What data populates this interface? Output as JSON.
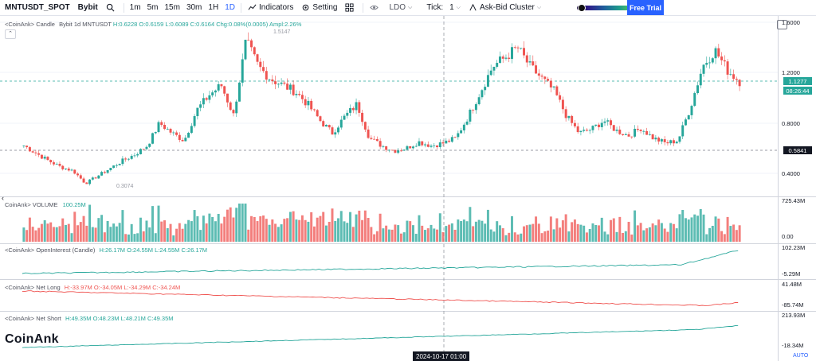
{
  "toolbar": {
    "symbol": "MNTUSDT_SPOT",
    "exchange": "Bybit",
    "intervals": [
      "1m",
      "5m",
      "15m",
      "30m",
      "1H",
      "1D"
    ],
    "active_interval": "1D",
    "indicators_label": "Indicators",
    "setting_label": "Setting",
    "ldo_label": "LDO",
    "tick_label": "Tick:",
    "tick_value": "1",
    "askbid_label": "Ask-Bid Cluster",
    "free_trial_label": "Free Trial",
    "gradient_knob_value": 0.05,
    "gradient_knob2_value": 0.97
  },
  "main_pane": {
    "legend_name": "<CoinAnk> Candle",
    "legend_symbol": "Bybit 1d MNTUSDT",
    "legend_h": "H:0.6228",
    "legend_o": "O:0.6159",
    "legend_l": "L:0.6089",
    "legend_c": "C:0.6164",
    "legend_chg": "Chg:0.08%(0.0005)",
    "legend_ampl": "Ampl:2.26%",
    "high_marker": "1.5147",
    "low_marker": "0.3074",
    "axis_ticks": [
      "1.6000",
      "1.2000",
      "0.8000",
      "0.4000"
    ],
    "last_price": "1.1277",
    "countdown": "08:26:44",
    "hline_price": "0.5841"
  },
  "volume_pane": {
    "legend_name": "CoinAnk> VOLUME",
    "legend_value": "100.25M",
    "axis_top": "725.43M",
    "axis_bottom": "0.00"
  },
  "oi_pane": {
    "legend_name": "<CoinAnk> OpenInterest (Candle)",
    "legend_h": "H:26.17M",
    "legend_o": "O:24.55M",
    "legend_l": "L:24.55M",
    "legend_c": "C:26.17M",
    "axis_top": "102.23M",
    "axis_bottom": "-5.29M"
  },
  "netlong_pane": {
    "legend_name": "<CoinAnk> Net Long",
    "legend_h": "H:-33.97M",
    "legend_o": "O:-34.05M",
    "legend_l": "L:-34.29M",
    "legend_c": "C:-34.24M",
    "axis_top": "41.48M",
    "axis_bottom": "-85.74M"
  },
  "netshort_pane": {
    "legend_name": "<CoinAnk> Net Short",
    "legend_h": "H:49.35M",
    "legend_o": "O:48.23M",
    "legend_l": "L:48.21M",
    "legend_c": "C:49.35M",
    "axis_top": "213.93M",
    "axis_bottom": "-18.34M"
  },
  "brand": "CoinAnk",
  "crosshair_time": "2024-10-17 01:00",
  "auto_label": "AUTO",
  "colors": {
    "up": "#26a69a",
    "down": "#ef5350",
    "accent": "#2962ff",
    "netlong": "#ef5350",
    "netshort": "#26a69a",
    "oi": "#26a69a"
  },
  "chart_data": {
    "type": "candlestick",
    "price_axis": {
      "ylim": [
        0.3,
        1.65
      ],
      "ticks": [
        1.6,
        1.2,
        0.8,
        0.4
      ]
    },
    "price_anchors": [
      0.62,
      0.56,
      0.5,
      0.45,
      0.42,
      0.32,
      0.38,
      0.44,
      0.5,
      0.55,
      0.62,
      0.8,
      0.72,
      0.66,
      0.9,
      1.02,
      1.1,
      0.86,
      1.45,
      1.25,
      1.15,
      1.1,
      1.05,
      0.95,
      0.82,
      0.72,
      0.85,
      0.95,
      0.68,
      0.62,
      0.58,
      0.6,
      0.65,
      0.62,
      0.64,
      0.68,
      0.85,
      1.05,
      1.25,
      1.32,
      1.4,
      1.25,
      1.15,
      1.05,
      0.85,
      0.72,
      0.75,
      0.82,
      0.74,
      0.7,
      0.76,
      0.68,
      0.64,
      0.66,
      0.92,
      1.25,
      1.38,
      1.22,
      1.13
    ],
    "volume_range": [
      0,
      725.43
    ],
    "oi_range": [
      -5.29,
      102.23
    ],
    "netlong_range": [
      -85.74,
      41.48
    ],
    "netshort_range": [
      -18.34,
      213.93
    ]
  }
}
